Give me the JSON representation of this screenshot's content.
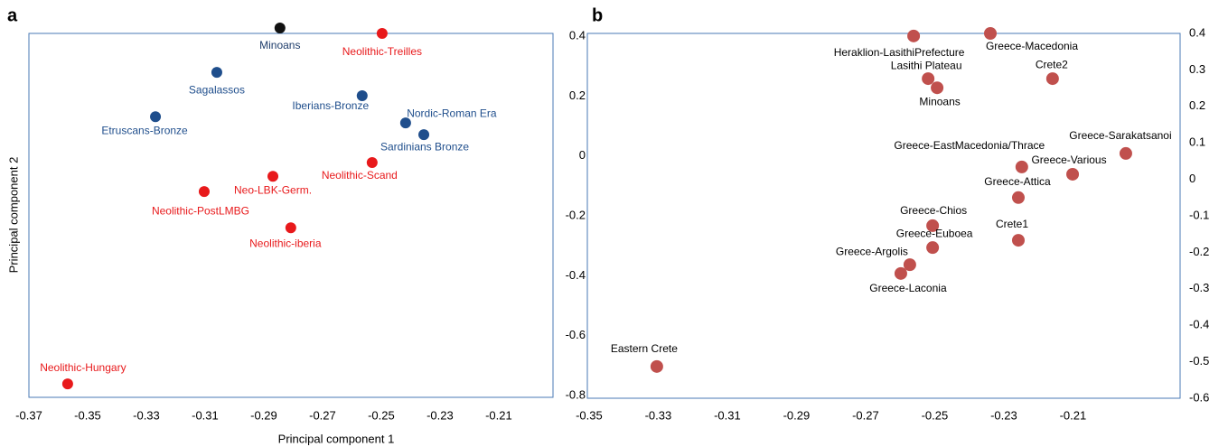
{
  "chart_data": [
    {
      "type": "scatter",
      "panel_label": "a",
      "x_label": "Principal component 1",
      "y_label": "Principal component 2",
      "point_labels": [
        "Minoans",
        "Neolithic-Treilles",
        "Sagalassos",
        "Iberians-Bronze",
        "Etruscans-Bronze",
        "Nordic-Roman Era",
        "Sardinians Bronze",
        "Neolithic-Scand",
        "Neo-LBK-Germ.",
        "Neolithic-PostLMBG",
        "Neolithic-iberia",
        "Neolithic-Hungary"
      ],
      "x": [
        -0.2845,
        -0.2497,
        -0.306,
        -0.2565,
        -0.3269,
        -0.2417,
        -0.2355,
        -0.2531,
        -0.2869,
        -0.3103,
        -0.2808,
        -0.3568
      ],
      "y": [
        0.427,
        0.409,
        0.279,
        0.201,
        0.131,
        0.11,
        0.071,
        -0.022,
        -0.068,
        -0.119,
        -0.24,
        -0.761
      ],
      "colors": [
        "#111111",
        "#e8191b",
        "#1f4e8c",
        "#1f4e8c",
        "#1f4e8c",
        "#1f4e8c",
        "#1f4e8c",
        "#e8191b",
        "#e8191b",
        "#e8191b",
        "#e8191b",
        "#e8191b"
      ],
      "xlim": [
        -0.37,
        -0.1915
      ],
      "ylim": [
        -0.806,
        0.409
      ],
      "xticks": [
        -0.37,
        -0.35,
        -0.33,
        -0.31,
        -0.29,
        -0.27,
        -0.25,
        -0.23,
        -0.21
      ],
      "yticks": [
        0.4,
        0.2,
        0,
        -0.2,
        -0.4,
        -0.6,
        -0.8
      ]
    },
    {
      "type": "scatter",
      "panel_label": "b",
      "point_labels": [
        "Heraklion-LasithiPrefecture",
        "Greece-Macedonia",
        "Lasithi Plateau",
        "Minoans",
        "Crete2",
        "Greece-Sarakatsanoi",
        "Greece-EastMacedonia/Thrace",
        "Greece-Various",
        "Greece-Attica",
        "Greece-Chios",
        "Crete1",
        "Greece-Euboea",
        "Greece-Argolis",
        "Greece-Laconia",
        "Eastern Crete"
      ],
      "x": [
        -0.2561,
        -0.2339,
        -0.2519,
        -0.2493,
        -0.2159,
        -0.1947,
        -0.2248,
        -0.2101,
        -0.2258,
        -0.2506,
        -0.2258,
        -0.2506,
        -0.2572,
        -0.2598,
        -0.3304
      ],
      "y": [
        0.393,
        0.4,
        0.276,
        0.251,
        0.276,
        0.071,
        0.034,
        0.014,
        -0.05,
        -0.127,
        -0.167,
        -0.187,
        -0.234,
        -0.258,
        -0.513
      ],
      "color": "#c0504d",
      "xlim": [
        -0.3505,
        -0.179
      ],
      "ylim": [
        -0.6,
        0.4
      ],
      "xticks": [
        -0.35,
        -0.33,
        -0.31,
        -0.29,
        -0.27,
        -0.25,
        -0.23,
        -0.21
      ],
      "yticks": [
        0.4,
        0.3,
        0.2,
        0.1,
        0,
        -0.1,
        -0.2,
        -0.3,
        -0.4,
        -0.5,
        -0.6
      ]
    }
  ]
}
